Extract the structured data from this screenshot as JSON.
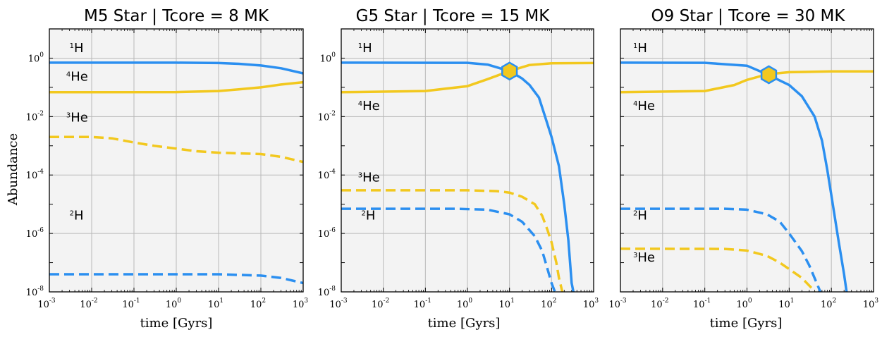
{
  "colors": {
    "hydrogen": "#2b8ff0",
    "helium": "#f2c81e",
    "plot_bg": "#f3f3f3",
    "grid": "#b9b9b9",
    "marker_edge": "#2b8ff0",
    "marker_fill": "#f2c81e"
  },
  "chart_data": [
    {
      "type": "line",
      "title": "M5 Star | Tcore = 8 MK",
      "xlabel": "time [Gyrs]",
      "ylabel": "Abundance",
      "xscale": "log",
      "yscale": "log",
      "xlim": [
        0.001,
        1000
      ],
      "ylim": [
        1e-08,
        10
      ],
      "xticks": [
        {
          "base": "10",
          "exp": "-3",
          "v": 0.001
        },
        {
          "base": "10",
          "exp": "-2",
          "v": 0.01
        },
        {
          "base": "10",
          "exp": "-1",
          "v": 0.1
        },
        {
          "base": "10",
          "exp": "0",
          "v": 1
        },
        {
          "base": "10",
          "exp": "1",
          "v": 10
        },
        {
          "base": "10",
          "exp": "2",
          "v": 100
        },
        {
          "base": "10",
          "exp": "3",
          "v": 1000
        }
      ],
      "yticks": [
        {
          "base": "10",
          "exp": "0",
          "v": 1
        },
        {
          "base": "10",
          "exp": "-2",
          "v": 0.01
        },
        {
          "base": "10",
          "exp": "-4",
          "v": 0.0001
        },
        {
          "base": "10",
          "exp": "-6",
          "v": 1e-06
        },
        {
          "base": "10",
          "exp": "-8",
          "v": 1e-08
        }
      ],
      "grid": true,
      "series": [
        {
          "name": "1H",
          "color": "hydrogen",
          "style": "solid",
          "points": [
            [
              0.001,
              0.7
            ],
            [
              1,
              0.7
            ],
            [
              10,
              0.68
            ],
            [
              30,
              0.64
            ],
            [
              100,
              0.56
            ],
            [
              300,
              0.45
            ],
            [
              1000,
              0.3
            ]
          ]
        },
        {
          "name": "4He",
          "color": "helium",
          "style": "solid",
          "points": [
            [
              0.001,
              0.068
            ],
            [
              1,
              0.069
            ],
            [
              10,
              0.075
            ],
            [
              30,
              0.085
            ],
            [
              100,
              0.1
            ],
            [
              300,
              0.125
            ],
            [
              1000,
              0.15
            ]
          ]
        },
        {
          "name": "3He",
          "color": "helium",
          "style": "dashed",
          "points": [
            [
              0.001,
              0.002
            ],
            [
              0.01,
              0.002
            ],
            [
              0.03,
              0.0018
            ],
            [
              0.1,
              0.0013
            ],
            [
              0.3,
              0.001
            ],
            [
              1,
              0.0008
            ],
            [
              3,
              0.00065
            ],
            [
              10,
              0.00058
            ],
            [
              100,
              0.00052
            ],
            [
              300,
              0.00042
            ],
            [
              1000,
              0.00028
            ]
          ]
        },
        {
          "name": "2H",
          "color": "hydrogen",
          "style": "dashed",
          "points": [
            [
              0.001,
              4e-08
            ],
            [
              10,
              4e-08
            ],
            [
              100,
              3.6e-08
            ],
            [
              300,
              3e-08
            ],
            [
              1000,
              2e-08
            ]
          ]
        }
      ],
      "labels": [
        {
          "sup": "1",
          "base": "H",
          "x": 0.003,
          "y": 1.6
        },
        {
          "sup": "4",
          "base": "He",
          "x": 0.0025,
          "y": 0.17
        },
        {
          "sup": "3",
          "base": "He",
          "x": 0.0025,
          "y": 0.0068
        },
        {
          "sup": "2",
          "base": "H",
          "x": 0.003,
          "y": 3e-06
        }
      ]
    },
    {
      "type": "line",
      "title": "G5 Star | Tcore = 15 MK",
      "xlabel": "time [Gyrs]",
      "ylabel": "",
      "xscale": "log",
      "yscale": "log",
      "xlim": [
        0.001,
        1000
      ],
      "ylim": [
        1e-08,
        10
      ],
      "xticks": [
        {
          "base": "10",
          "exp": "-3",
          "v": 0.001
        },
        {
          "base": "10",
          "exp": "-2",
          "v": 0.01
        },
        {
          "base": "10",
          "exp": "-1",
          "v": 0.1
        },
        {
          "base": "10",
          "exp": "0",
          "v": 1
        },
        {
          "base": "10",
          "exp": "1",
          "v": 10
        },
        {
          "base": "10",
          "exp": "2",
          "v": 100
        },
        {
          "base": "10",
          "exp": "3",
          "v": 1000
        }
      ],
      "yticks": [
        {
          "base": "10",
          "exp": "0",
          "v": 1
        },
        {
          "base": "10",
          "exp": "-2",
          "v": 0.01
        },
        {
          "base": "10",
          "exp": "-4",
          "v": 0.0001
        },
        {
          "base": "10",
          "exp": "-6",
          "v": 1e-06
        },
        {
          "base": "10",
          "exp": "-8",
          "v": 1e-08
        }
      ],
      "grid": true,
      "series": [
        {
          "name": "1H",
          "color": "hydrogen",
          "style": "solid",
          "points": [
            [
              0.001,
              0.7
            ],
            [
              1,
              0.69
            ],
            [
              3,
              0.6
            ],
            [
              10,
              0.36
            ],
            [
              20,
              0.2
            ],
            [
              30,
              0.12
            ],
            [
              50,
              0.045
            ],
            [
              70,
              0.01
            ],
            [
              100,
              0.002
            ],
            [
              150,
              0.0002
            ],
            [
              200,
              1e-05
            ],
            [
              250,
              6e-07
            ],
            [
              300,
              2e-08
            ],
            [
              330,
              1e-08
            ]
          ]
        },
        {
          "name": "4He",
          "color": "helium",
          "style": "solid",
          "points": [
            [
              0.001,
              0.068
            ],
            [
              0.1,
              0.075
            ],
            [
              1,
              0.11
            ],
            [
              3,
              0.19
            ],
            [
              10,
              0.36
            ],
            [
              30,
              0.58
            ],
            [
              100,
              0.67
            ],
            [
              1000,
              0.68
            ]
          ]
        },
        {
          "name": "3He",
          "color": "helium",
          "style": "dashed",
          "points": [
            [
              0.001,
              3e-05
            ],
            [
              1,
              3e-05
            ],
            [
              5,
              2.8e-05
            ],
            [
              10,
              2.5e-05
            ],
            [
              20,
              1.8e-05
            ],
            [
              40,
              1e-05
            ],
            [
              60,
              4e-06
            ],
            [
              80,
              1.3e-06
            ],
            [
              100,
              5e-07
            ],
            [
              130,
              1e-07
            ],
            [
              150,
              3e-08
            ],
            [
              180,
              1e-08
            ]
          ]
        },
        {
          "name": "2H",
          "color": "hydrogen",
          "style": "dashed",
          "points": [
            [
              0.001,
              7e-06
            ],
            [
              0.5,
              7e-06
            ],
            [
              3,
              6.5e-06
            ],
            [
              10,
              4.5e-06
            ],
            [
              20,
              2.5e-06
            ],
            [
              40,
              8e-07
            ],
            [
              60,
              2.5e-07
            ],
            [
              80,
              6e-08
            ],
            [
              100,
              2e-08
            ],
            [
              120,
              1e-08
            ]
          ]
        }
      ],
      "labels": [
        {
          "sup": "1",
          "base": "H",
          "x": 0.0025,
          "y": 1.6
        },
        {
          "sup": "4",
          "base": "He",
          "x": 0.0025,
          "y": 0.017
        },
        {
          "sup": "3",
          "base": "He",
          "x": 0.0025,
          "y": 6e-05
        },
        {
          "sup": "2",
          "base": "H",
          "x": 0.003,
          "y": 3e-06
        }
      ],
      "marker": {
        "shape": "hexagon",
        "x": 10,
        "y": 0.36
      }
    },
    {
      "type": "line",
      "title": "O9 Star | Tcore = 30 MK",
      "xlabel": "time [Gyrs]",
      "ylabel": "",
      "xscale": "log",
      "yscale": "log",
      "xlim": [
        0.001,
        1000
      ],
      "ylim": [
        1e-08,
        10
      ],
      "xticks": [
        {
          "base": "10",
          "exp": "-3",
          "v": 0.001
        },
        {
          "base": "10",
          "exp": "-2",
          "v": 0.01
        },
        {
          "base": "10",
          "exp": "-1",
          "v": 0.1
        },
        {
          "base": "10",
          "exp": "0",
          "v": 1
        },
        {
          "base": "10",
          "exp": "1",
          "v": 10
        },
        {
          "base": "10",
          "exp": "2",
          "v": 100
        },
        {
          "base": "10",
          "exp": "3",
          "v": 1000
        }
      ],
      "yticks": [],
      "grid": true,
      "series": [
        {
          "name": "1H",
          "color": "hydrogen",
          "style": "solid",
          "points": [
            [
              0.001,
              0.7
            ],
            [
              0.1,
              0.69
            ],
            [
              1,
              0.55
            ],
            [
              3,
              0.28
            ],
            [
              10,
              0.12
            ],
            [
              20,
              0.05
            ],
            [
              40,
              0.01
            ],
            [
              60,
              0.0015
            ],
            [
              80,
              0.00015
            ],
            [
              100,
              2e-05
            ],
            [
              150,
              5e-07
            ],
            [
              200,
              4e-08
            ],
            [
              230,
              1e-08
            ]
          ]
        },
        {
          "name": "4He",
          "color": "helium",
          "style": "solid",
          "points": [
            [
              0.001,
              0.068
            ],
            [
              0.1,
              0.075
            ],
            [
              0.5,
              0.12
            ],
            [
              1,
              0.18
            ],
            [
              3,
              0.28
            ],
            [
              10,
              0.33
            ],
            [
              100,
              0.35
            ],
            [
              1000,
              0.35
            ]
          ]
        },
        {
          "name": "2H",
          "color": "hydrogen",
          "style": "dashed",
          "points": [
            [
              0.001,
              7e-06
            ],
            [
              0.3,
              7e-06
            ],
            [
              1,
              6.5e-06
            ],
            [
              3,
              4.5e-06
            ],
            [
              6,
              2.5e-06
            ],
            [
              10,
              1e-06
            ],
            [
              20,
              2.5e-07
            ],
            [
              30,
              8e-08
            ],
            [
              45,
              2e-08
            ],
            [
              55,
              1e-08
            ]
          ]
        },
        {
          "name": "3He",
          "color": "helium",
          "style": "dashed",
          "points": [
            [
              0.001,
              3e-07
            ],
            [
              0.3,
              2.95e-07
            ],
            [
              1,
              2.6e-07
            ],
            [
              3,
              1.7e-07
            ],
            [
              6,
              1e-07
            ],
            [
              10,
              6e-08
            ],
            [
              20,
              3e-08
            ],
            [
              35,
              1.3e-08
            ],
            [
              40,
              1e-08
            ]
          ]
        }
      ],
      "labels": [
        {
          "sup": "1",
          "base": "H",
          "x": 0.002,
          "y": 1.6
        },
        {
          "sup": "4",
          "base": "He",
          "x": 0.002,
          "y": 0.017
        },
        {
          "sup": "2",
          "base": "H",
          "x": 0.002,
          "y": 3e-06
        },
        {
          "sup": "3",
          "base": "He",
          "x": 0.002,
          "y": 1.1e-07
        }
      ],
      "marker": {
        "shape": "hexagon",
        "x": 3.3,
        "y": 0.27
      }
    }
  ]
}
